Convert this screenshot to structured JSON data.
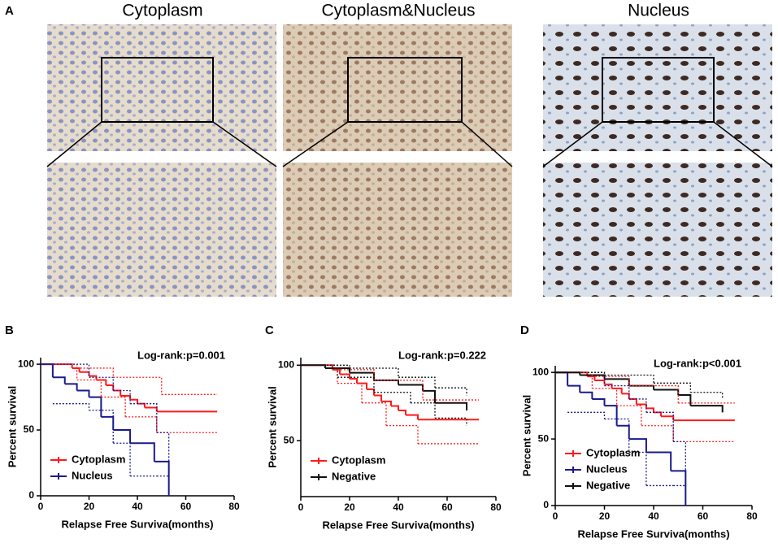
{
  "figure": {
    "panel": "A",
    "titles": [
      "Cytoplasm",
      "Cytoplasm&Nucleus",
      "Nucleus"
    ]
  },
  "chart_data": [
    {
      "type": "line",
      "step": true,
      "panel": "B",
      "annotation": "Log-rank:p=0.001",
      "x_label": "Relapse Free Surviva(months)",
      "y_label": "Percent survival",
      "xlim": [
        0,
        80
      ],
      "xticks": [
        0,
        20,
        40,
        60,
        80
      ],
      "ylim": [
        0,
        105
      ],
      "yticks": [
        0,
        50,
        100
      ],
      "legend": "lower left",
      "series": [
        {
          "name": "Cytoplasm",
          "color": "#ff1a1a",
          "x": [
            0,
            10,
            13,
            16,
            20,
            23,
            27,
            30,
            33,
            37,
            40,
            43,
            48,
            73
          ],
          "values": [
            100,
            100,
            97,
            94,
            91,
            88,
            84,
            80,
            76,
            73,
            70,
            67,
            64,
            64
          ]
        },
        {
          "name": "Nucleus",
          "color": "#1a1a8c",
          "x": [
            0,
            5,
            10,
            15,
            20,
            25,
            30,
            37,
            47,
            53
          ],
          "values": [
            100,
            90,
            85,
            80,
            75,
            60,
            50,
            40,
            26,
            0
          ]
        },
        {
          "color": "#ff1a1a",
          "dotted": true,
          "x": [
            0,
            15,
            30,
            50,
            73
          ],
          "values": [
            100,
            97,
            90,
            77,
            77
          ]
        },
        {
          "color": "#ff1a1a",
          "dotted": true,
          "x": [
            0,
            15,
            25,
            35,
            48,
            73
          ],
          "values": [
            100,
            88,
            75,
            60,
            48,
            48
          ]
        },
        {
          "color": "#1a1a8c",
          "dotted": true,
          "x": [
            0,
            20,
            30,
            37,
            48,
            53
          ],
          "values": [
            100,
            90,
            80,
            70,
            48,
            0
          ]
        },
        {
          "color": "#1a1a8c",
          "dotted": true,
          "x": [
            5,
            20,
            30,
            37,
            48,
            53
          ],
          "values": [
            70,
            65,
            40,
            15,
            15,
            0
          ]
        }
      ]
    },
    {
      "type": "line",
      "step": true,
      "panel": "C",
      "annotation": "Log-rank:p=0.222",
      "x_label": "Relapse Free Surviva(months)",
      "y_label": "Percent survival",
      "xlim": [
        0,
        80
      ],
      "xticks": [
        0,
        20,
        40,
        60,
        80
      ],
      "ylim": [
        13,
        105
      ],
      "yticks": [
        50,
        100
      ],
      "legend": "lower left",
      "series": [
        {
          "name": "Cytoplasm",
          "color": "#ff1a1a",
          "x": [
            0,
            10,
            13,
            16,
            20,
            23,
            27,
            30,
            33,
            37,
            40,
            43,
            48,
            73
          ],
          "values": [
            100,
            100,
            97,
            94,
            91,
            88,
            84,
            80,
            76,
            73,
            70,
            67,
            64,
            64
          ]
        },
        {
          "name": "Negative",
          "color": "#111111",
          "x": [
            0,
            10,
            20,
            30,
            40,
            50,
            55,
            68
          ],
          "values": [
            100,
            98,
            95,
            90,
            87,
            83,
            75,
            70
          ]
        },
        {
          "color": "#ff1a1a",
          "dotted": true,
          "x": [
            0,
            15,
            30,
            50,
            73
          ],
          "values": [
            100,
            97,
            90,
            77,
            77
          ]
        },
        {
          "color": "#ff1a1a",
          "dotted": true,
          "x": [
            0,
            15,
            25,
            35,
            48,
            73
          ],
          "values": [
            100,
            88,
            75,
            60,
            48,
            48
          ]
        },
        {
          "color": "#111111",
          "dotted": true,
          "x": [
            0,
            20,
            40,
            55,
            68
          ],
          "values": [
            100,
            98,
            92,
            85,
            80
          ]
        },
        {
          "color": "#111111",
          "dotted": true,
          "x": [
            0,
            15,
            30,
            45,
            55,
            68
          ],
          "values": [
            100,
            92,
            82,
            75,
            65,
            60
          ]
        }
      ]
    },
    {
      "type": "line",
      "step": true,
      "panel": "D",
      "annotation": "Log-rank:p<0.001",
      "x_label": "Relapse Free Surviva(months)",
      "y_label": "Percent survival",
      "xlim": [
        0,
        80
      ],
      "xticks": [
        0,
        20,
        40,
        60,
        80
      ],
      "ylim": [
        0,
        105
      ],
      "yticks": [
        0,
        50,
        100
      ],
      "legend": "lower left",
      "series": [
        {
          "name": "Cytoplasm",
          "color": "#ff1a1a",
          "x": [
            0,
            10,
            13,
            16,
            20,
            23,
            27,
            30,
            33,
            37,
            40,
            43,
            48,
            73
          ],
          "values": [
            100,
            100,
            97,
            94,
            91,
            88,
            84,
            80,
            76,
            73,
            70,
            67,
            64,
            64
          ]
        },
        {
          "name": "Nucleus",
          "color": "#1a1a8c",
          "x": [
            0,
            5,
            10,
            15,
            20,
            25,
            30,
            37,
            47,
            53
          ],
          "values": [
            100,
            90,
            85,
            80,
            75,
            60,
            50,
            40,
            26,
            0
          ]
        },
        {
          "name": "Negative",
          "color": "#111111",
          "x": [
            0,
            10,
            20,
            30,
            40,
            50,
            55,
            68
          ],
          "values": [
            100,
            98,
            95,
            90,
            87,
            83,
            75,
            70
          ]
        },
        {
          "color": "#ff1a1a",
          "dotted": true,
          "x": [
            0,
            15,
            30,
            50,
            73
          ],
          "values": [
            100,
            97,
            90,
            77,
            77
          ]
        },
        {
          "color": "#ff1a1a",
          "dotted": true,
          "x": [
            0,
            15,
            25,
            35,
            48,
            73
          ],
          "values": [
            100,
            88,
            75,
            60,
            48,
            48
          ]
        },
        {
          "color": "#1a1a8c",
          "dotted": true,
          "x": [
            0,
            20,
            30,
            37,
            48,
            53
          ],
          "values": [
            100,
            90,
            80,
            70,
            48,
            0
          ]
        },
        {
          "color": "#1a1a8c",
          "dotted": true,
          "x": [
            5,
            20,
            30,
            37,
            48,
            53
          ],
          "values": [
            70,
            65,
            40,
            15,
            15,
            0
          ]
        },
        {
          "color": "#111111",
          "dotted": true,
          "x": [
            0,
            20,
            40,
            55,
            68
          ],
          "values": [
            100,
            98,
            92,
            85,
            80
          ]
        }
      ]
    }
  ]
}
